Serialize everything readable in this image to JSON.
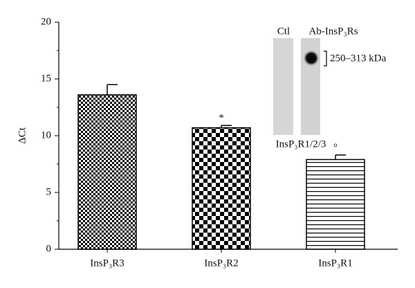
{
  "chart_data": {
    "type": "bar",
    "y_label": "ΔCt",
    "categories": [
      "InsP₃R3",
      "InsP₃R2",
      "InsP₃R1"
    ],
    "values": [
      13.6,
      10.7,
      7.9
    ],
    "errors": [
      0.9,
      0.2,
      0.4
    ],
    "markers": [
      null,
      "*",
      "°"
    ],
    "patterns": [
      "checker-fine",
      "checker-coarse",
      "horizontal-lines"
    ],
    "color": "#000000",
    "ylim": [
      0,
      20
    ],
    "yticks": [
      0,
      5,
      10,
      15,
      20
    ],
    "yminor": [
      2.5,
      7.5,
      12.5,
      17.5
    ],
    "inset": {
      "lanes": [
        "Ctl",
        "Ab-InsP₃Rs"
      ],
      "size_label": "250–313 kDa",
      "caption": "InsP₃R1/2/3"
    }
  }
}
